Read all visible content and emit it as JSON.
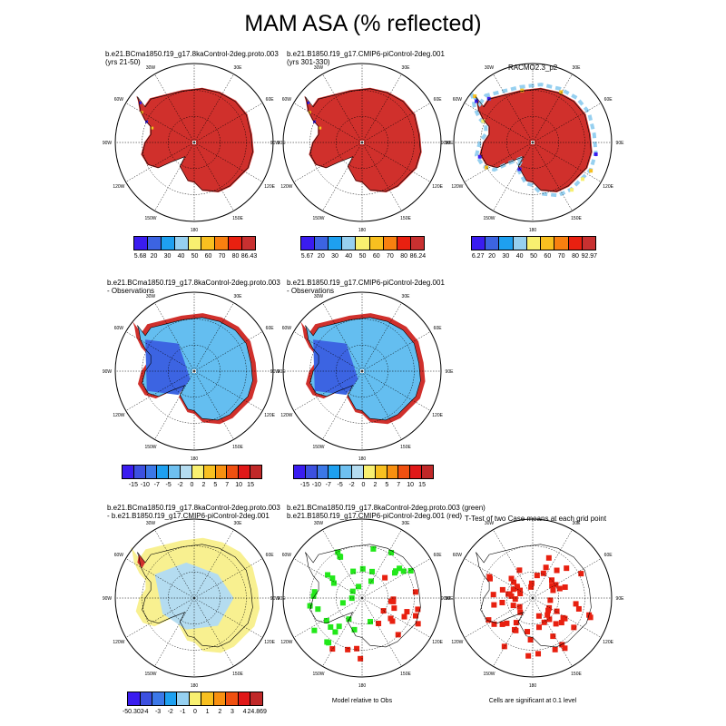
{
  "title": "MAM ASA (% reflected)",
  "panels": [
    {
      "id": "p1",
      "title_lines": [
        "b.e21.BCma1850.f19_g17.8kaControl-2deg.proto.003",
        "(yrs 21-50)"
      ],
      "field": "abs_model_a",
      "colorbar": {
        "labels": [
          "5.68",
          "20",
          "30",
          "40",
          "50",
          "60",
          "70",
          "80",
          "86.43"
        ],
        "colors": [
          "#3a1cf0",
          "#3c64e2",
          "#1ea0f0",
          "#96d0f0",
          "#f8f070",
          "#f8c020",
          "#f88010",
          "#e82010",
          "#c83030"
        ]
      }
    },
    {
      "id": "p2",
      "title_lines": [
        "b.e21.B1850.f19_g17.CMIP6-piControl-2deg.001",
        "(yrs 301-330)"
      ],
      "field": "abs_model_b",
      "colorbar": {
        "labels": [
          "5.67",
          "20",
          "30",
          "40",
          "50",
          "60",
          "70",
          "80",
          "86.24"
        ],
        "colors": [
          "#3a1cf0",
          "#3c64e2",
          "#1ea0f0",
          "#96d0f0",
          "#f8f070",
          "#f8c020",
          "#f88010",
          "#e82010",
          "#c83030"
        ]
      }
    },
    {
      "id": "p3",
      "title_lines": [
        "RACMO2.3_p2"
      ],
      "field": "abs_obs",
      "colorbar": {
        "labels": [
          "6.27",
          "20",
          "30",
          "40",
          "50",
          "60",
          "70",
          "80",
          "92.97"
        ],
        "colors": [
          "#3a1cf0",
          "#3c64e2",
          "#1ea0f0",
          "#96d0f0",
          "#f8f070",
          "#f8c020",
          "#f88010",
          "#e82010",
          "#c83030"
        ]
      }
    },
    {
      "id": "p4",
      "title_lines": [
        "b.e21.BCma1850.f19_g17.8kaControl-2deg.proto.003",
        "- Observations"
      ],
      "field": "diff_obs",
      "colorbar": {
        "labels": [
          "-15",
          "-10",
          "-7",
          "-5",
          "-2",
          "0",
          "2",
          "5",
          "7",
          "10",
          "15"
        ],
        "colors": [
          "#3a1cf0",
          "#3c50e0",
          "#3c78e8",
          "#1ea0f0",
          "#6ec0f0",
          "#b4dcf0",
          "#f8f070",
          "#f8c020",
          "#f89010",
          "#f05010",
          "#e01818",
          "#c02828"
        ]
      }
    },
    {
      "id": "p5",
      "title_lines": [
        "b.e21.B1850.f19_g17.CMIP6-piControl-2deg.001",
        "- Observations"
      ],
      "field": "diff_obs",
      "colorbar": {
        "labels": [
          "-15",
          "-10",
          "-7",
          "-5",
          "-2",
          "0",
          "2",
          "5",
          "7",
          "10",
          "15"
        ],
        "colors": [
          "#3a1cf0",
          "#3c50e0",
          "#3c78e8",
          "#1ea0f0",
          "#6ec0f0",
          "#b4dcf0",
          "#f8f070",
          "#f8c020",
          "#f89010",
          "#f05010",
          "#e01818",
          "#c02828"
        ]
      }
    },
    {
      "id": "p7",
      "title_lines": [
        "b.e21.BCma1850.f19_g17.8kaControl-2deg.proto.003",
        "- b.e21.B1850.f19_g17.CMIP6-piControl-2deg.001"
      ],
      "field": "diff_models",
      "colorbar": {
        "labels": [
          "-50.302",
          "-4",
          "-3",
          "-2",
          "-1",
          "0",
          "1",
          "2",
          "3",
          "4",
          "24.869"
        ],
        "colors": [
          "#3a1cf0",
          "#3c50e0",
          "#3c78e8",
          "#1ea0f0",
          "#96d0f0",
          "#f8f070",
          "#f8c020",
          "#f89010",
          "#f05010",
          "#e01818",
          "#c02828"
        ]
      }
    },
    {
      "id": "p8",
      "title_lines": [
        "b.e21.BCma1850.f19_g17.8kaControl-2deg.proto.003 (green)",
        "b.e21.B1850.f19_g17.CMIP6-piControl-2deg.001 (red)"
      ],
      "field": "green_red",
      "note": "Model relative to Obs"
    },
    {
      "id": "p9",
      "title_lines": [
        "T-Test of two Case means at each grid point"
      ],
      "field": "ttest",
      "note": "Cells are significant at 0.1 level"
    }
  ],
  "lon_labels": [
    "30W",
    "30E",
    "60W",
    "60E",
    "90W",
    "90E",
    "120W",
    "120E",
    "150W",
    "150E",
    "180"
  ],
  "chart_data": {
    "type": "heatmap",
    "projection": "south polar stereographic",
    "title": "MAM ASA (% reflected)",
    "variable": "ASA (% reflected)",
    "season": "MAM",
    "colors": {
      "ice_red": "#d0302c",
      "ice_blue": "#64bef0",
      "dark_blue": "#3c64e2",
      "pale_yellow": "#f8f090",
      "pale_blue": "#b4dcf0",
      "green": "#22e81a",
      "red": "#e82010"
    }
  }
}
